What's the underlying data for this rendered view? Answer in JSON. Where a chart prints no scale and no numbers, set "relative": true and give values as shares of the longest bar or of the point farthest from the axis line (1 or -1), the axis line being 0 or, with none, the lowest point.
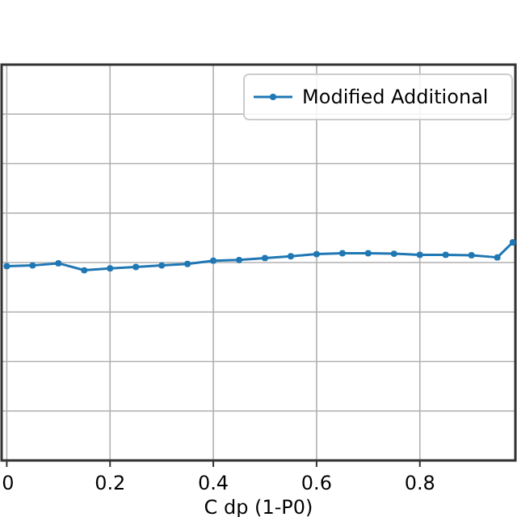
{
  "chart_data": {
    "type": "line",
    "xlabel": "C  dp (1-P0)",
    "relative": true,
    "x": [
      0,
      0.05,
      0.1,
      0.15,
      0.2,
      0.25,
      0.3,
      0.35,
      0.4,
      0.45,
      0.5,
      0.55,
      0.6,
      0.65,
      0.7,
      0.75,
      0.8,
      0.85,
      0.9,
      0.95,
      0.98
    ],
    "series": [
      {
        "name": "Modified Additional",
        "color": "#1f77b4",
        "values": [
          0.891,
          0.894,
          0.904,
          0.872,
          0.881,
          0.887,
          0.894,
          0.901,
          0.916,
          0.919,
          0.928,
          0.936,
          0.946,
          0.95,
          0.95,
          0.948,
          0.943,
          0.943,
          0.941,
          0.931,
          1
        ]
      }
    ],
    "xlim": [
      -0.01,
      0.985
    ],
    "xticks": [
      {
        "value": 0,
        "label": "0"
      },
      0.2,
      0.4,
      0.6,
      0.8
    ],
    "grid": true,
    "legend": "top right",
    "marker": "circle",
    "tick_labels": "x"
  }
}
